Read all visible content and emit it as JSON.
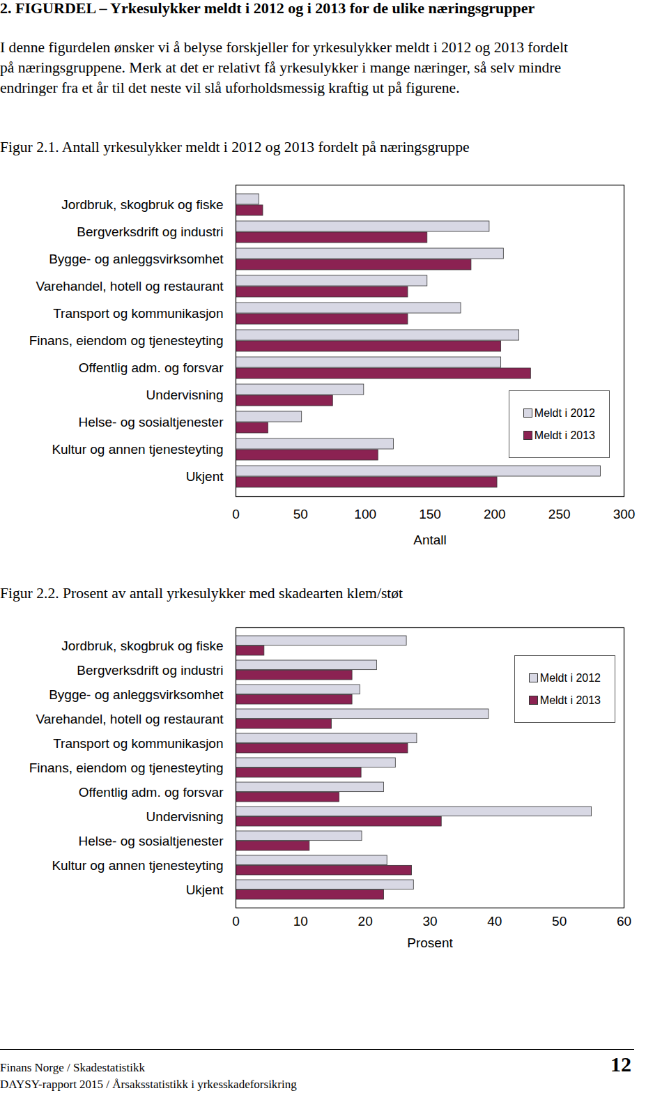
{
  "header": {
    "title": "2. FIGURDEL – Yrkesulykker meldt i 2012 og i 2013 for de ulike næringsgrupper",
    "intro": [
      "I denne figurdelen ønsker vi å belyse forskjeller for yrkesulykker meldt i 2012 og 2013 fordelt",
      "på næringsgruppene. Merk at det er relativt få yrkesulykker i mange næringer, så selv mindre",
      "endringer fra et år til det neste vil slå uforholdsmessig kraftig ut på figurene."
    ]
  },
  "chart_data": [
    {
      "type": "bar",
      "orientation": "horizontal",
      "title": "Figur 2.1. Antall yrkesulykker meldt i 2012 og 2013 fordelt på næringsgruppe",
      "categories": [
        "Jordbruk, skogbruk og fiske",
        "Bergverksdrift og industri",
        "Bygge- og anleggsvirksomhet",
        "Varehandel, hotell og restaurant",
        "Transport og kommunikasjon",
        "Finans, eiendom og tjenesteyting",
        "Offentlig adm. og forsvar",
        "Undervisning",
        "Helse- og sosialtjenester",
        "Kultur og annen tjenesteyting",
        "Ukjent"
      ],
      "series": [
        {
          "name": "Meldt i 2012",
          "color": "#d8d8e4",
          "values": [
            18,
            196,
            207,
            148,
            174,
            219,
            205,
            99,
            51,
            122,
            282
          ]
        },
        {
          "name": "Meldt i 2013",
          "color": "#8b2252",
          "values": [
            21,
            148,
            182,
            133,
            133,
            205,
            228,
            75,
            25,
            110,
            202
          ]
        }
      ],
      "xlim": [
        0,
        300
      ],
      "xticks": [
        0,
        50,
        100,
        150,
        200,
        250,
        300
      ],
      "xlabel": "Antall",
      "grid": false,
      "legend": "lower right"
    },
    {
      "type": "bar",
      "orientation": "horizontal",
      "title": "Figur 2.2. Prosent av antall yrkesulykker med skadearten klem/støt",
      "categories": [
        "Jordbruk, skogbruk og fiske",
        "Bergverksdrift og industri",
        "Bygge- og anleggsvirksomhet",
        "Varehandel, hotell og restaurant",
        "Transport og kommunikasjon",
        "Finans, eiendom og tjenesteyting",
        "Offentlig adm. og forsvar",
        "Undervisning",
        "Helse- og sosialtjenester",
        "Kultur og annen tjenesteyting",
        "Ukjent"
      ],
      "series": [
        {
          "name": "Meldt i 2012",
          "color": "#d8d8e4",
          "values": [
            26.4,
            21.8,
            19.2,
            39.1,
            28.0,
            24.7,
            22.9,
            55.0,
            19.5,
            23.4,
            27.5
          ]
        },
        {
          "name": "Meldt i 2013",
          "color": "#8b2252",
          "values": [
            4.4,
            18.0,
            18.0,
            14.8,
            26.6,
            19.4,
            16.0,
            31.8,
            11.4,
            27.2,
            22.9
          ]
        }
      ],
      "xlim": [
        0,
        60
      ],
      "xticks": [
        0,
        10,
        20,
        30,
        40,
        50,
        60
      ],
      "xlabel": "Prosent",
      "grid": false,
      "legend": "upper right"
    }
  ],
  "footer": {
    "lines": [
      "Finans Norge / Skadestatistikk",
      "DAYSY-rapport 2015 / Årsaksstatistikk i yrkesskadeforsikring"
    ],
    "page": 12
  }
}
